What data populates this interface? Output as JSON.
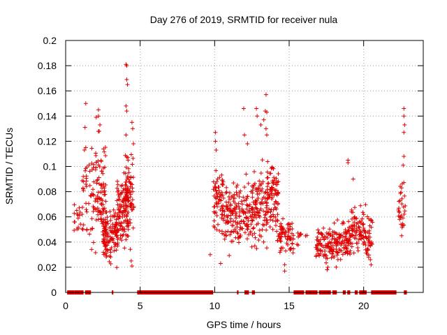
{
  "chart_data": {
    "type": "scatter",
    "title": "Day 276 of 2019, SRMTID for receiver nula",
    "xlabel": "GPS time / hours",
    "ylabel": "SRMTID / TECUs",
    "xlim": [
      0,
      24
    ],
    "ylim": [
      0,
      0.2
    ],
    "x_ticks": [
      0,
      5,
      10,
      15,
      20
    ],
    "x_tick_labels": [
      "0",
      "5",
      "10",
      "15",
      "20"
    ],
    "y_ticks": [
      0,
      0.02,
      0.04,
      0.06,
      0.08,
      0.1,
      0.12,
      0.14,
      0.16,
      0.18,
      0.2
    ],
    "y_tick_labels": [
      "0",
      "0.02",
      "0.04",
      "0.06",
      "0.08",
      "0.1",
      "0.12",
      "0.14",
      "0.16",
      "0.18",
      "0.2"
    ],
    "grid": true,
    "marker": "+",
    "color": "#e00000",
    "series": [
      {
        "name": "SRMTID",
        "clusters": [
          {
            "x_range": [
              0.5,
              1.0
            ],
            "y_median": 0.058,
            "y_spread": 0.012,
            "count": 16
          },
          {
            "x_range": [
              1.1,
              1.8
            ],
            "y_median": 0.075,
            "y_spread": 0.03,
            "count": 40
          },
          {
            "x_range": [
              1.8,
              2.7
            ],
            "y_median": 0.08,
            "y_spread": 0.035,
            "count": 95
          },
          {
            "x_range": [
              2.5,
              3.5
            ],
            "y_median": 0.047,
            "y_spread": 0.018,
            "count": 120
          },
          {
            "x_range": [
              3.4,
              4.2
            ],
            "y_median": 0.062,
            "y_spread": 0.025,
            "count": 110
          },
          {
            "x_range": [
              4.0,
              4.6
            ],
            "y_median": 0.078,
            "y_spread": 0.025,
            "count": 70
          },
          {
            "x_range": [
              9.9,
              10.6
            ],
            "y_median": 0.075,
            "y_spread": 0.022,
            "count": 60
          },
          {
            "x_range": [
              10.5,
              11.5
            ],
            "y_median": 0.062,
            "y_spread": 0.018,
            "count": 90
          },
          {
            "x_range": [
              11.5,
              12.5
            ],
            "y_median": 0.062,
            "y_spread": 0.018,
            "count": 80
          },
          {
            "x_range": [
              12.5,
              13.5
            ],
            "y_median": 0.068,
            "y_spread": 0.022,
            "count": 100
          },
          {
            "x_range": [
              13.5,
              14.3
            ],
            "y_median": 0.075,
            "y_spread": 0.022,
            "count": 90
          },
          {
            "x_range": [
              14.2,
              15.3
            ],
            "y_median": 0.045,
            "y_spread": 0.012,
            "count": 70
          },
          {
            "x_range": [
              15.5,
              16.2
            ],
            "y_median": 0.043,
            "y_spread": 0.006,
            "count": 10
          },
          {
            "x_range": [
              16.8,
              18.0
            ],
            "y_median": 0.038,
            "y_spread": 0.01,
            "count": 90
          },
          {
            "x_range": [
              18.0,
              19.0
            ],
            "y_median": 0.04,
            "y_spread": 0.012,
            "count": 80
          },
          {
            "x_range": [
              19.0,
              20.1
            ],
            "y_median": 0.05,
            "y_spread": 0.014,
            "count": 90
          },
          {
            "x_range": [
              20.1,
              20.6
            ],
            "y_median": 0.045,
            "y_spread": 0.014,
            "count": 40
          },
          {
            "x_range": [
              22.3,
              22.8
            ],
            "y_median": 0.068,
            "y_spread": 0.018,
            "count": 30
          }
        ],
        "peaks": [
          {
            "x": 1.35,
            "y": 0.15
          },
          {
            "x": 1.3,
            "y": 0.131
          },
          {
            "x": 1.35,
            "y": 0.115
          },
          {
            "x": 2.2,
            "y": 0.145
          },
          {
            "x": 2.2,
            "y": 0.14
          },
          {
            "x": 2.3,
            "y": 0.133
          },
          {
            "x": 2.05,
            "y": 0.139
          },
          {
            "x": 2.25,
            "y": 0.128
          },
          {
            "x": 4.05,
            "y": 0.181
          },
          {
            "x": 4.1,
            "y": 0.18
          },
          {
            "x": 4.1,
            "y": 0.169
          },
          {
            "x": 4.15,
            "y": 0.165
          },
          {
            "x": 4.05,
            "y": 0.148
          },
          {
            "x": 4.1,
            "y": 0.144
          },
          {
            "x": 4.05,
            "y": 0.125
          },
          {
            "x": 4.45,
            "y": 0.135
          },
          {
            "x": 4.5,
            "y": 0.13
          },
          {
            "x": 4.55,
            "y": 0.118
          },
          {
            "x": 4.4,
            "y": 0.025
          },
          {
            "x": 4.45,
            "y": 0.021
          },
          {
            "x": 9.7,
            "y": 0.03
          },
          {
            "x": 10.05,
            "y": 0.127
          },
          {
            "x": 10.05,
            "y": 0.12
          },
          {
            "x": 10.1,
            "y": 0.113
          },
          {
            "x": 10.4,
            "y": 0.023
          },
          {
            "x": 11.95,
            "y": 0.146
          },
          {
            "x": 12.0,
            "y": 0.125
          },
          {
            "x": 12.2,
            "y": 0.118
          },
          {
            "x": 12.8,
            "y": 0.146
          },
          {
            "x": 12.85,
            "y": 0.14
          },
          {
            "x": 13.1,
            "y": 0.133
          },
          {
            "x": 13.45,
            "y": 0.157
          },
          {
            "x": 13.4,
            "y": 0.144
          },
          {
            "x": 13.5,
            "y": 0.143
          },
          {
            "x": 13.3,
            "y": 0.137
          },
          {
            "x": 13.45,
            "y": 0.13
          },
          {
            "x": 13.5,
            "y": 0.125
          },
          {
            "x": 14.7,
            "y": 0.017
          },
          {
            "x": 14.7,
            "y": 0.022
          },
          {
            "x": 17.6,
            "y": 0.02
          },
          {
            "x": 17.55,
            "y": 0.018
          },
          {
            "x": 18.95,
            "y": 0.105
          },
          {
            "x": 18.95,
            "y": 0.103
          },
          {
            "x": 19.3,
            "y": 0.09
          },
          {
            "x": 20.5,
            "y": 0.022
          },
          {
            "x": 20.45,
            "y": 0.026
          },
          {
            "x": 22.7,
            "y": 0.146
          },
          {
            "x": 22.7,
            "y": 0.14
          },
          {
            "x": 22.75,
            "y": 0.133
          },
          {
            "x": 22.7,
            "y": 0.127
          },
          {
            "x": 22.7,
            "y": 0.108
          },
          {
            "x": 22.65,
            "y": 0.101
          },
          {
            "x": 22.55,
            "y": 0.045
          }
        ],
        "zero_segments": [
          [
            0.1,
            0.6
          ],
          [
            0.6,
            1.2
          ],
          [
            1.3,
            1.5
          ],
          [
            1.5,
            1.7
          ],
          [
            3.1,
            3.2
          ],
          [
            4.8,
            9.9
          ],
          [
            11.5,
            11.6
          ],
          [
            12.0,
            12.3
          ],
          [
            12.5,
            12.7
          ],
          [
            15.3,
            16.0
          ],
          [
            16.1,
            16.9
          ],
          [
            17.0,
            17.8
          ],
          [
            17.9,
            18.2
          ],
          [
            18.6,
            18.8
          ],
          [
            18.9,
            19.1
          ],
          [
            19.4,
            19.6
          ],
          [
            19.7,
            20.2
          ],
          [
            20.5,
            22.2
          ],
          [
            22.7,
            22.9
          ]
        ]
      }
    ]
  }
}
